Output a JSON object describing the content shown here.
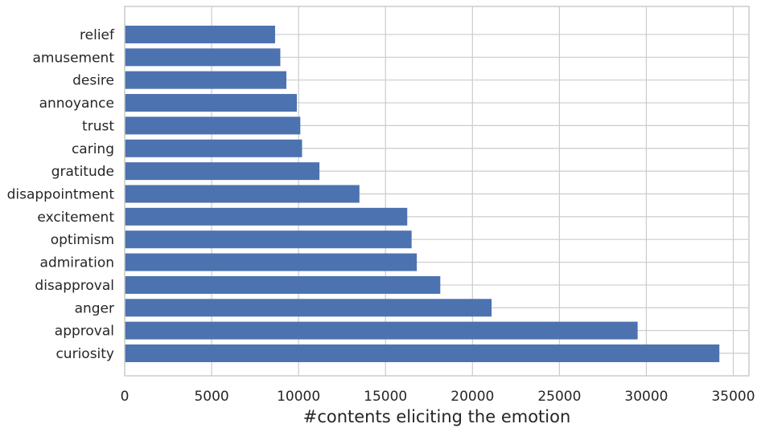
{
  "chart_data": {
    "type": "bar",
    "orientation": "horizontal",
    "categories": [
      "curiosity",
      "approval",
      "anger",
      "disapproval",
      "admiration",
      "optimism",
      "excitement",
      "disappointment",
      "gratitude",
      "caring",
      "trust",
      "annoyance",
      "desire",
      "amusement",
      "relief"
    ],
    "values": [
      34200,
      29500,
      21100,
      18150,
      16800,
      16500,
      16250,
      13500,
      11200,
      10200,
      10100,
      9900,
      9300,
      8950,
      8650
    ],
    "xlabel": "#contents eliciting the emotion",
    "ylabel": "",
    "title": "",
    "xlim": [
      0,
      35900
    ],
    "xticks": [
      0,
      5000,
      10000,
      15000,
      20000,
      25000,
      30000,
      35000
    ],
    "xtick_labels": [
      "0",
      "5000",
      "10000",
      "15000",
      "20000",
      "25000",
      "30000",
      "35000"
    ],
    "grid": true,
    "bar_color": "#4c72b0"
  }
}
